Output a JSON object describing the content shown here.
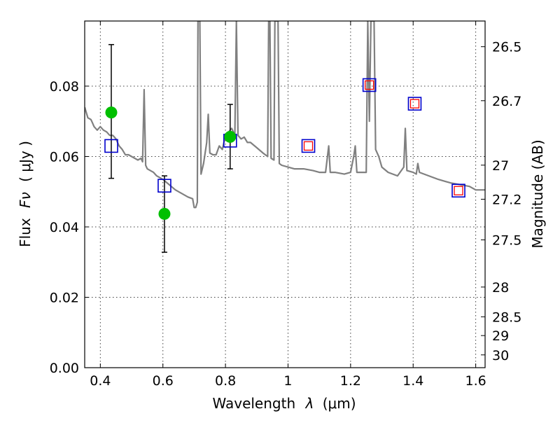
{
  "chart_data": {
    "type": "scatter",
    "xlabel_text": "Wavelength",
    "xlabel_symbol": "λ",
    "xlabel_unit": "(μm)",
    "ylabel_text": "Flux",
    "ylabel_symbol": "Fν",
    "ylabel_unit": "( μJy )",
    "y2label": "Magnitude (AB)",
    "xlim": [
      0.35,
      1.63
    ],
    "ylim": [
      0.0,
      0.0985
    ],
    "grid": true,
    "x_ticks": [
      0.4,
      0.6,
      0.8,
      1.0,
      1.2,
      1.4,
      1.6
    ],
    "x_tick_labels": [
      "0.4",
      "0.6",
      "0.8",
      "1",
      "1.2",
      "1.4",
      "1.6"
    ],
    "y_ticks": [
      0.0,
      0.02,
      0.04,
      0.06,
      0.08
    ],
    "y_tick_labels": [
      "0.00",
      "0.02",
      "0.04",
      "0.06",
      "0.08"
    ],
    "mag_ticks": [
      {
        "label": "26.5",
        "mag": 26.5
      },
      {
        "label": "26.7",
        "mag": 26.7
      },
      {
        "label": "27",
        "mag": 27.0
      },
      {
        "label": "27.2",
        "mag": 27.2
      },
      {
        "label": "27.5",
        "mag": 27.5
      },
      {
        "label": "28",
        "mag": 28.0
      },
      {
        "label": "28.5",
        "mag": 28.5
      },
      {
        "label": "29",
        "mag": 29.0
      },
      {
        "label": "30",
        "mag": 30.0
      }
    ],
    "series": [
      {
        "name": "Model spectrum",
        "style": "line",
        "color": "#808080",
        "points": [
          [
            0.35,
            0.074
          ],
          [
            0.36,
            0.071
          ],
          [
            0.37,
            0.0705
          ],
          [
            0.375,
            0.0695
          ],
          [
            0.38,
            0.0685
          ],
          [
            0.39,
            0.0675
          ],
          [
            0.4,
            0.0685
          ],
          [
            0.41,
            0.0675
          ],
          [
            0.42,
            0.067
          ],
          [
            0.43,
            0.066
          ],
          [
            0.44,
            0.066
          ],
          [
            0.45,
            0.065
          ],
          [
            0.46,
            0.063
          ],
          [
            0.47,
            0.062
          ],
          [
            0.48,
            0.0605
          ],
          [
            0.49,
            0.0605
          ],
          [
            0.5,
            0.06
          ],
          [
            0.51,
            0.0595
          ],
          [
            0.52,
            0.059
          ],
          [
            0.53,
            0.0595
          ],
          [
            0.535,
            0.0585
          ],
          [
            0.54,
            0.079
          ],
          [
            0.545,
            0.0575
          ],
          [
            0.55,
            0.0565
          ],
          [
            0.56,
            0.056
          ],
          [
            0.57,
            0.0555
          ],
          [
            0.58,
            0.0545
          ],
          [
            0.6,
            0.0535
          ],
          [
            0.62,
            0.052
          ],
          [
            0.64,
            0.0505
          ],
          [
            0.66,
            0.0495
          ],
          [
            0.68,
            0.0485
          ],
          [
            0.695,
            0.048
          ],
          [
            0.7,
            0.0455
          ],
          [
            0.705,
            0.0455
          ],
          [
            0.71,
            0.047
          ],
          [
            0.712,
            0.0985
          ],
          [
            0.718,
            0.0985
          ],
          [
            0.722,
            0.055
          ],
          [
            0.73,
            0.058
          ],
          [
            0.74,
            0.064
          ],
          [
            0.745,
            0.072
          ],
          [
            0.75,
            0.061
          ],
          [
            0.76,
            0.0605
          ],
          [
            0.77,
            0.0605
          ],
          [
            0.78,
            0.063
          ],
          [
            0.79,
            0.062
          ],
          [
            0.8,
            0.066
          ],
          [
            0.81,
            0.067
          ],
          [
            0.82,
            0.068
          ],
          [
            0.83,
            0.066
          ],
          [
            0.835,
            0.0985
          ],
          [
            0.84,
            0.066
          ],
          [
            0.85,
            0.065
          ],
          [
            0.86,
            0.0655
          ],
          [
            0.87,
            0.064
          ],
          [
            0.88,
            0.064
          ],
          [
            0.9,
            0.0625
          ],
          [
            0.92,
            0.061
          ],
          [
            0.935,
            0.06
          ],
          [
            0.938,
            0.0985
          ],
          [
            0.942,
            0.0985
          ],
          [
            0.946,
            0.0595
          ],
          [
            0.955,
            0.059
          ],
          [
            0.958,
            0.0985
          ],
          [
            0.968,
            0.0985
          ],
          [
            0.972,
            0.058
          ],
          [
            0.98,
            0.0575
          ],
          [
            1.0,
            0.057
          ],
          [
            1.02,
            0.0565
          ],
          [
            1.05,
            0.0565
          ],
          [
            1.08,
            0.056
          ],
          [
            1.1,
            0.0555
          ],
          [
            1.12,
            0.0555
          ],
          [
            1.13,
            0.063
          ],
          [
            1.135,
            0.0555
          ],
          [
            1.15,
            0.0555
          ],
          [
            1.18,
            0.055
          ],
          [
            1.2,
            0.0555
          ],
          [
            1.21,
            0.06
          ],
          [
            1.215,
            0.063
          ],
          [
            1.22,
            0.0555
          ],
          [
            1.23,
            0.0555
          ],
          [
            1.25,
            0.0555
          ],
          [
            1.255,
            0.0985
          ],
          [
            1.26,
            0.07
          ],
          [
            1.265,
            0.0985
          ],
          [
            1.275,
            0.0985
          ],
          [
            1.28,
            0.062
          ],
          [
            1.29,
            0.06
          ],
          [
            1.3,
            0.057
          ],
          [
            1.32,
            0.0555
          ],
          [
            1.35,
            0.0545
          ],
          [
            1.37,
            0.057
          ],
          [
            1.375,
            0.068
          ],
          [
            1.38,
            0.056
          ],
          [
            1.4,
            0.0555
          ],
          [
            1.41,
            0.055
          ],
          [
            1.415,
            0.058
          ],
          [
            1.42,
            0.0555
          ],
          [
            1.45,
            0.0545
          ],
          [
            1.48,
            0.0535
          ],
          [
            1.5,
            0.053
          ],
          [
            1.52,
            0.0525
          ],
          [
            1.55,
            0.052
          ],
          [
            1.58,
            0.0515
          ],
          [
            1.6,
            0.0505
          ],
          [
            1.63,
            0.0505
          ]
        ]
      },
      {
        "name": "Observed fluxes (green)",
        "style": "marker-circle",
        "color": "#00bf00",
        "points": [
          {
            "x": 0.435,
            "y": 0.0725,
            "yerr_low": 0.0538,
            "yerr_high": 0.0918
          },
          {
            "x": 0.605,
            "y": 0.0437,
            "yerr_low": 0.0328,
            "yerr_high": 0.0545
          },
          {
            "x": 0.815,
            "y": 0.0656,
            "yerr_low": 0.0565,
            "yerr_high": 0.0748
          }
        ]
      },
      {
        "name": "Model band fluxes (blue squares)",
        "style": "marker-square-blue",
        "color": "#0000cc",
        "points": [
          {
            "x": 0.435,
            "y": 0.063
          },
          {
            "x": 0.605,
            "y": 0.0517
          },
          {
            "x": 0.815,
            "y": 0.0645
          },
          {
            "x": 1.065,
            "y": 0.063
          },
          {
            "x": 1.26,
            "y": 0.0803
          },
          {
            "x": 1.405,
            "y": 0.075
          },
          {
            "x": 1.545,
            "y": 0.0503
          }
        ]
      },
      {
        "name": "Upper limits (red squares)",
        "style": "marker-square-red",
        "color": "#ff0000",
        "points": [
          {
            "x": 1.065,
            "y": 0.063
          },
          {
            "x": 1.26,
            "y": 0.0803
          },
          {
            "x": 1.405,
            "y": 0.075
          },
          {
            "x": 1.545,
            "y": 0.0503
          }
        ]
      }
    ]
  }
}
